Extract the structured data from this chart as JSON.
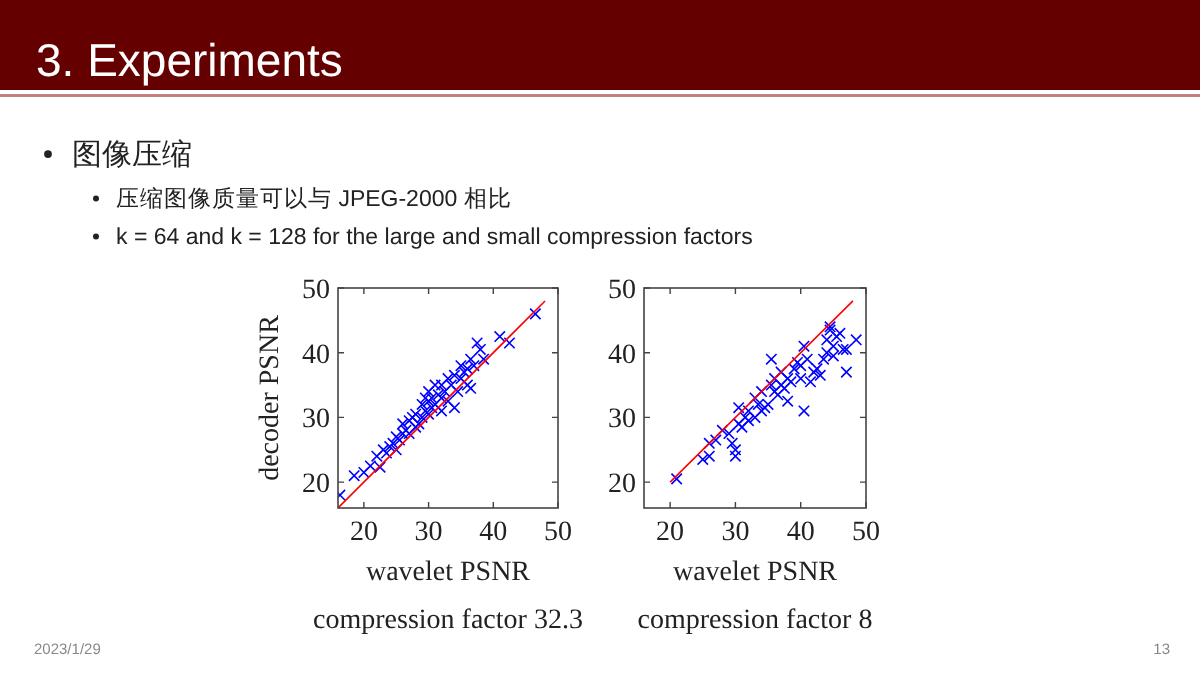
{
  "chart_data": [
    {
      "type": "other",
      "title": "3. Experiments",
      "annotations": [
        "图像压缩",
        "压缩图像质量可以与 JPEG-2000 相比",
        "k = 64 and k = 128 for the large and small compression factors",
        "2023/1/29",
        "13"
      ]
    },
    {
      "type": "scatter",
      "xlabel": "wavelet PSNR",
      "ylabel": "decoder PSNR",
      "annotations": [
        "compression factor 32.3"
      ],
      "xlim": [
        16,
        50
      ],
      "ylim": [
        16,
        50
      ],
      "xticks": [
        20,
        30,
        40,
        50
      ],
      "yticks": [
        20,
        30,
        40,
        50
      ],
      "series": [
        {
          "type": "scatter",
          "marker": "cross",
          "color": "#0000ff",
          "x": [
            16.3,
            18.5,
            20,
            21,
            22,
            22.5,
            23,
            23.5,
            24,
            24.5,
            25,
            25,
            25.5,
            26,
            26,
            26.5,
            27,
            27,
            27.5,
            28,
            28,
            28.5,
            29,
            29,
            29.5,
            29.5,
            30,
            30,
            30,
            30.5,
            30.5,
            31,
            31,
            31.5,
            32,
            32,
            32,
            32.5,
            33,
            33,
            33.5,
            34,
            34,
            34.5,
            35,
            35,
            35.5,
            36,
            36,
            36.5,
            36.5,
            37,
            37.5,
            38,
            38.5,
            41,
            42.5,
            46.5
          ],
          "values": [
            18,
            21,
            21.5,
            22.5,
            24,
            22.3,
            25,
            24.5,
            25.5,
            26,
            25,
            27,
            26.5,
            27.5,
            29,
            28,
            29.5,
            27.5,
            30,
            28.5,
            30.5,
            29,
            30,
            32,
            33,
            31,
            32.5,
            34,
            30.5,
            31.5,
            33,
            32,
            35,
            33.5,
            33,
            35,
            31,
            34,
            36,
            32.5,
            35,
            31.5,
            36.5,
            34,
            36,
            38,
            37,
            35,
            37.5,
            39,
            34.5,
            38,
            41.5,
            40.5,
            39,
            42.5,
            41.5,
            46
          ]
        },
        {
          "type": "line",
          "color": "#ff0000",
          "x": [
            16,
            48
          ],
          "values": [
            16,
            48
          ]
        }
      ]
    },
    {
      "type": "scatter",
      "xlabel": "wavelet PSNR",
      "annotations": [
        "compression factor 8"
      ],
      "xlim": [
        16,
        50
      ],
      "ylim": [
        16,
        50
      ],
      "xticks": [
        20,
        30,
        40,
        50
      ],
      "yticks": [
        20,
        30,
        40,
        50
      ],
      "series": [
        {
          "type": "scatter",
          "marker": "cross",
          "color": "#0000ff",
          "x": [
            21,
            25,
            26,
            26,
            27,
            28,
            29,
            29.5,
            30,
            30,
            30.5,
            30.5,
            31,
            31.5,
            32,
            32,
            33,
            33,
            33.5,
            34,
            34,
            34.5,
            35,
            35.5,
            35.5,
            36,
            36,
            36.5,
            37,
            37,
            37.5,
            38,
            38,
            38.5,
            39,
            39.5,
            40,
            40,
            40.5,
            40.5,
            41,
            41.5,
            42,
            42.5,
            43,
            43.5,
            44,
            44,
            44.5,
            45,
            45,
            45.5,
            46,
            46.5,
            47,
            48.5,
            47,
            44.5
          ],
          "values": [
            20.5,
            23.5,
            24,
            26,
            26.5,
            28,
            27.5,
            26,
            25,
            24,
            29,
            31.5,
            28.5,
            30,
            29.5,
            31,
            33,
            30,
            32,
            31,
            34,
            31.5,
            32,
            35,
            39,
            34,
            36,
            33.5,
            35,
            37,
            34.5,
            36,
            32.5,
            35.5,
            37.5,
            38.5,
            36,
            38,
            41,
            31,
            39,
            35.5,
            37,
            37.5,
            36.5,
            39,
            40,
            42,
            43.5,
            41,
            39.5,
            42.5,
            43,
            40.5,
            37,
            42,
            40.5,
            44
          ]
        },
        {
          "type": "line",
          "color": "#ff0000",
          "x": [
            20,
            48
          ],
          "values": [
            20,
            48
          ]
        }
      ]
    }
  ]
}
